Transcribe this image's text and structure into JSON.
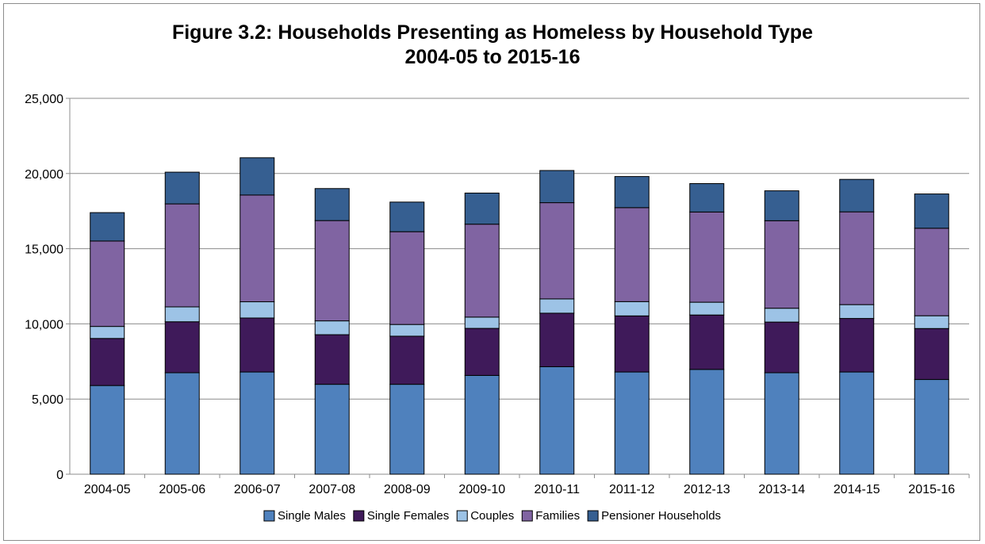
{
  "chart_data": {
    "type": "bar",
    "stacked": true,
    "title": "Figure 3.2: Households Presenting as Homeless by Household Type",
    "subtitle": "2004-05 to 2015-16",
    "xlabel": "",
    "ylabel": "",
    "ylim": [
      0,
      25000
    ],
    "yticks": [
      0,
      5000,
      10000,
      15000,
      20000,
      25000
    ],
    "ytick_labels": [
      "0",
      "5,000",
      "10,000",
      "15,000",
      "20,000",
      "25,000"
    ],
    "grid": true,
    "legend_position": "bottom",
    "categories": [
      "2004-05",
      "2005-06",
      "2006-07",
      "2007-08",
      "2008-09",
      "2009-10",
      "2010-11",
      "2011-12",
      "2012-13",
      "2013-14",
      "2014-15",
      "2015-16"
    ],
    "series": [
      {
        "name": "Single Males",
        "color": "#4f81bd",
        "values": [
          5900,
          6750,
          6800,
          5980,
          5980,
          6570,
          7150,
          6800,
          6970,
          6750,
          6800,
          6300
        ]
      },
      {
        "name": "Single Females",
        "color": "#3f1a5a",
        "values": [
          3130,
          3390,
          3590,
          3300,
          3200,
          3130,
          3560,
          3730,
          3620,
          3370,
          3560,
          3390
        ]
      },
      {
        "name": "Couples",
        "color": "#9dc3e6",
        "values": [
          800,
          990,
          1080,
          920,
          780,
          750,
          950,
          950,
          850,
          920,
          920,
          850
        ]
      },
      {
        "name": "Families",
        "color": "#8064a2",
        "values": [
          5680,
          6850,
          7100,
          6670,
          6170,
          6180,
          6400,
          6250,
          6000,
          5820,
          6170,
          5820
        ]
      },
      {
        "name": "Pensioner Households",
        "color": "#365f91",
        "values": [
          1890,
          2110,
          2480,
          2130,
          1970,
          2070,
          2140,
          2070,
          1890,
          1990,
          2160,
          2280
        ]
      }
    ]
  }
}
